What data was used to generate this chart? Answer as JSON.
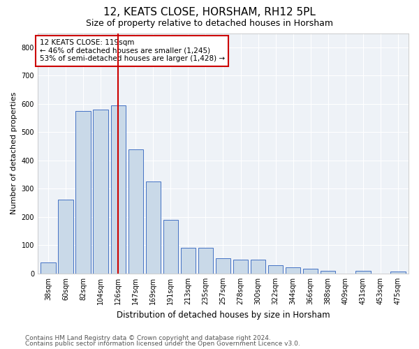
{
  "title": "12, KEATS CLOSE, HORSHAM, RH12 5PL",
  "subtitle": "Size of property relative to detached houses in Horsham",
  "xlabel": "Distribution of detached houses by size in Horsham",
  "ylabel": "Number of detached properties",
  "categories": [
    "38sqm",
    "60sqm",
    "82sqm",
    "104sqm",
    "126sqm",
    "147sqm",
    "169sqm",
    "191sqm",
    "213sqm",
    "235sqm",
    "257sqm",
    "278sqm",
    "300sqm",
    "322sqm",
    "344sqm",
    "366sqm",
    "388sqm",
    "409sqm",
    "431sqm",
    "453sqm",
    "475sqm"
  ],
  "values": [
    38,
    260,
    575,
    580,
    595,
    440,
    325,
    190,
    90,
    92,
    55,
    50,
    48,
    30,
    22,
    18,
    10,
    0,
    10,
    0,
    8
  ],
  "bar_color": "#c9d9e8",
  "bar_edge_color": "#4472c4",
  "vline_x_index": 4,
  "vline_color": "#cc0000",
  "annotation_text": "12 KEATS CLOSE: 119sqm\n← 46% of detached houses are smaller (1,245)\n53% of semi-detached houses are larger (1,428) →",
  "annotation_box_color": "white",
  "annotation_box_edge_color": "#cc0000",
  "ylim": [
    0,
    850
  ],
  "yticks": [
    0,
    100,
    200,
    300,
    400,
    500,
    600,
    700,
    800
  ],
  "footer_line1": "Contains HM Land Registry data © Crown copyright and database right 2024.",
  "footer_line2": "Contains public sector information licensed under the Open Government Licence v3.0.",
  "bg_color": "#eef2f7",
  "grid_color": "#ffffff",
  "title_fontsize": 11,
  "subtitle_fontsize": 9,
  "tick_fontsize": 7,
  "ylabel_fontsize": 8,
  "xlabel_fontsize": 8.5,
  "footer_fontsize": 6.5
}
